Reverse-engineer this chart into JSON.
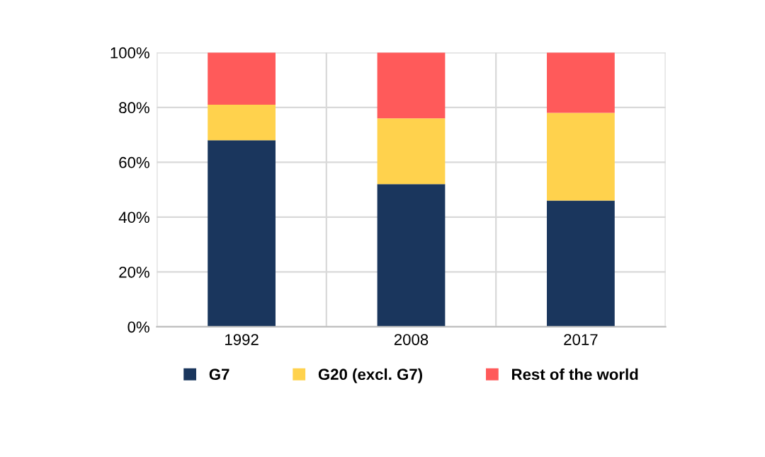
{
  "chart_data": {
    "type": "bar",
    "stacked": true,
    "categories": [
      "1992",
      "2008",
      "2017"
    ],
    "series": [
      {
        "name": "G7",
        "color": "#1a365d",
        "values": [
          68,
          52,
          46
        ]
      },
      {
        "name": "G20 (excl. G7)",
        "color": "#ffd24d",
        "values": [
          13,
          24,
          32
        ]
      },
      {
        "name": "Rest of the world",
        "color": "#ff5a5a",
        "values": [
          19,
          24,
          22
        ]
      }
    ],
    "ylim": [
      0,
      100
    ],
    "yticks": [
      {
        "value": 0,
        "label": "0%"
      },
      {
        "value": 20,
        "label": "20%"
      },
      {
        "value": 40,
        "label": "40%"
      },
      {
        "value": 60,
        "label": "60%"
      },
      {
        "value": 80,
        "label": "80%"
      },
      {
        "value": 100,
        "label": "100%"
      }
    ],
    "grid": true,
    "legend": "bottom"
  }
}
